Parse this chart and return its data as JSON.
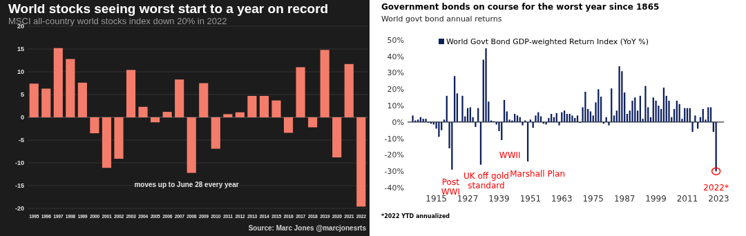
{
  "chart_data": [
    {
      "type": "bar",
      "title": "World stocks seeing worst start to a year on record",
      "subtitle": "MSCI all-country world stocks index down 20% in 2022",
      "categories": [
        "1995",
        "1996",
        "1997",
        "1998",
        "1999",
        "2000",
        "2001",
        "2002",
        "2003",
        "2004",
        "2005",
        "2006",
        "2007",
        "2008",
        "2009",
        "2010",
        "2011",
        "2012",
        "2013",
        "2014",
        "2015",
        "2016",
        "2017",
        "2018",
        "2019",
        "2020",
        "2021",
        "2022"
      ],
      "values": [
        7.4,
        6.3,
        15.2,
        12.8,
        7.6,
        -3.5,
        -11.1,
        -9.1,
        10.4,
        2.3,
        -1.1,
        1.2,
        8.3,
        -12.2,
        7.5,
        -6.9,
        0.7,
        1.1,
        4.7,
        4.7,
        3.7,
        -3.4,
        11.0,
        -2.2,
        14.8,
        -8.8,
        11.7,
        -19.6
      ],
      "color": "#f47c6a",
      "ylim": [
        -20,
        20
      ],
      "yticks": [
        -20,
        -15,
        -10,
        -5,
        0,
        5,
        10,
        15,
        20
      ],
      "grid": "y",
      "annotations": [
        "moves up to June 28 every year",
        "Source: Marc Jones @marcjonesrts"
      ]
    },
    {
      "type": "bar",
      "title": "Government bonds on course for the worst year since 1865",
      "subtitle": "World govt bond annual returns",
      "x": [
        1906,
        1907,
        1908,
        1909,
        1910,
        1911,
        1912,
        1913,
        1914,
        1915,
        1916,
        1917,
        1918,
        1919,
        1920,
        1921,
        1922,
        1923,
        1924,
        1925,
        1926,
        1927,
        1928,
        1929,
        1930,
        1931,
        1932,
        1933,
        1934,
        1935,
        1936,
        1937,
        1938,
        1939,
        1940,
        1941,
        1942,
        1943,
        1944,
        1945,
        1946,
        1947,
        1948,
        1949,
        1950,
        1951,
        1952,
        1953,
        1954,
        1955,
        1956,
        1957,
        1958,
        1959,
        1960,
        1961,
        1962,
        1963,
        1964,
        1965,
        1966,
        1967,
        1968,
        1969,
        1970,
        1971,
        1972,
        1973,
        1974,
        1975,
        1976,
        1977,
        1978,
        1979,
        1980,
        1981,
        1982,
        1983,
        1984,
        1985,
        1986,
        1987,
        1988,
        1989,
        1990,
        1991,
        1992,
        1993,
        1994,
        1995,
        1996,
        1997,
        1998,
        1999,
        2000,
        2001,
        2002,
        2003,
        2004,
        2005,
        2006,
        2007,
        2008,
        2009,
        2010,
        2011,
        2012,
        2013,
        2014,
        2015,
        2016,
        2017,
        2018,
        2019,
        2020,
        2021,
        2022
      ],
      "series": [
        {
          "name": "World Govt Bond GDP-weighted Return Index (YoY %)",
          "color": "#0d1f5c",
          "values": [
            4,
            1,
            1.5,
            3,
            2,
            2,
            -0.5,
            -1,
            -1.5,
            -4,
            -9,
            -5,
            1.5,
            16,
            -16,
            -29,
            28,
            17.5,
            0.5,
            16,
            3.5,
            8.5,
            9,
            3,
            -3,
            8.5,
            -26,
            38,
            45,
            12.5,
            1,
            0.5,
            -1.5,
            -5.5,
            -11,
            13.5,
            6.5,
            1.5,
            1,
            5,
            4,
            3,
            -2,
            1,
            -24,
            1.5,
            -3.5,
            4,
            6,
            3.5,
            -1,
            -1.5,
            2.5,
            5,
            3,
            5.5,
            -2,
            6,
            7,
            5,
            5,
            4,
            2.5,
            4,
            -0.5,
            9,
            18.5,
            8,
            6.5,
            4,
            12,
            20,
            15.5,
            -1,
            3,
            -2,
            20.5,
            4,
            7,
            34,
            31,
            18,
            5,
            7,
            13,
            15,
            7,
            16,
            2,
            22,
            9,
            3,
            15,
            13,
            10,
            8,
            21,
            16,
            13,
            3,
            8,
            13,
            11,
            2,
            8.5,
            8.5,
            8.5,
            -6,
            4,
            -4,
            3,
            8,
            1.5,
            9,
            9,
            -6,
            -30
          ]
        }
      ],
      "xlim": [
        1904,
        2025
      ],
      "xticks": [
        1915,
        1927,
        1939,
        1951,
        1963,
        1975,
        1987,
        1999,
        2011,
        2023
      ],
      "ylim": [
        -40,
        50
      ],
      "yticks": [
        {
          "value": -40,
          "label": "-40%"
        },
        {
          "value": -30,
          "label": "-30%"
        },
        {
          "value": -20,
          "label": "-20%"
        },
        {
          "value": -10,
          "label": "-10%"
        },
        {
          "value": 0,
          "label": "0%"
        },
        {
          "value": 10,
          "label": "10%"
        },
        {
          "value": 20,
          "label": "20%"
        },
        {
          "value": 30,
          "label": "30%"
        },
        {
          "value": 40,
          "label": "40%"
        },
        {
          "value": 50,
          "label": "50%"
        }
      ],
      "legend": "top",
      "annotations": [
        {
          "text": "Post WWI",
          "x": 1921,
          "y": -29
        },
        {
          "text": "UK off gold standard",
          "x": 1932,
          "y": -26
        },
        {
          "text": "WWII",
          "x": 1940,
          "y": -11
        },
        {
          "text": "Marshall Plan",
          "x": 1950,
          "y": -24
        },
        {
          "text": "2022*",
          "x": 2022,
          "y": -30
        },
        "*2022 YTD annualized"
      ]
    }
  ]
}
